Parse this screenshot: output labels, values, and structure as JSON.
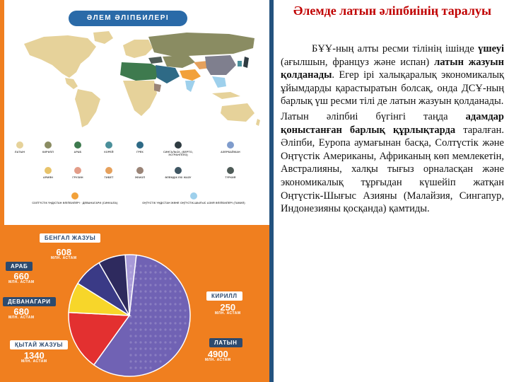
{
  "infographic": {
    "header": "ӘЛЕМ ӘЛІПБИЛЕРІ",
    "legend": [
      {
        "label": "ЛАТЫН",
        "color": "#e6d29a"
      },
      {
        "label": "КИРИЛЛ",
        "color": "#8a8c62"
      },
      {
        "label": "АРАБ",
        "color": "#3e7a4e"
      },
      {
        "label": "КОРЕЙ",
        "color": "#4a8f9a"
      },
      {
        "label": "ГРЕК",
        "color": "#2e6a86"
      },
      {
        "label": "СИНГАЛЬСК, (БЕРТО, ЭСТРАНГЕЛО)",
        "color": "#2f3c42"
      },
      {
        "label": "АЗЕРБАЙЖАН",
        "color": "#7f9ccc"
      },
      {
        "label": "АРМЯН",
        "color": "#e8c36a"
      },
      {
        "label": "ГРУЗИН",
        "color": "#e39d88"
      },
      {
        "label": "ТИБЕТ",
        "color": "#e6a15c"
      },
      {
        "label": "ЭФИОП",
        "color": "#9a8477"
      },
      {
        "label": "ӘЛЕМДІК ЕКІ ЖАЗУ",
        "color": "#3f5662"
      },
      {
        "label": "ТҮРКИЯ",
        "color": "#4e5b57"
      },
      {
        "label": "СОЛТҮСТІК ҮНДІСТАН ӘЛІПБИЛЕРІ · ДЕВАНАГАРИ (СИНХАЛА)",
        "color": "#f2a13a"
      },
      {
        "label": "ОҢТҮСТІК ҮНДІСТАН ЖӘНЕ ОҢТҮСТІК-ШЫҒЫС АЗИЯ ӘЛІПБИЛЕРІ (ТАМИЛ)",
        "color": "#9ed0ec"
      }
    ]
  },
  "chart_data": {
    "type": "pie",
    "title": "",
    "series": [
      {
        "name": "ЛАТЫН",
        "value": 4900,
        "value_label": "4900",
        "unit": "МЛН. АСТАМ",
        "color": "#7062b4"
      },
      {
        "name": "ҚЫТАЙ ЖАЗУЫ",
        "value": 1340,
        "value_label": "1340",
        "unit": "МЛН. АСТАМ",
        "color": "#e33030"
      },
      {
        "name": "ДЕВАНАГАРИ",
        "value": 680,
        "value_label": "680",
        "unit": "МЛН. АСТАМ",
        "color": "#f7d62a"
      },
      {
        "name": "АРАБ",
        "value": 660,
        "value_label": "660",
        "unit": "МЛН. АСТАМ",
        "color": "#3a3a86"
      },
      {
        "name": "БЕНГАЛ ЖАЗУЫ",
        "value": 608,
        "value_label": "608",
        "unit": "МЛН. АСТАМ",
        "color": "#2e2a5e"
      },
      {
        "name": "КИРИЛЛ",
        "value": 250,
        "value_label": "250",
        "unit": "МЛН. АСТАМ",
        "color": "#a89ad8"
      }
    ]
  },
  "text": {
    "title": "Әлемде латын әліпбиінің таралуы",
    "p1_a": "БҰҰ-ның алты ресми тілінің ішінде ",
    "p1_b": "үшеуі",
    "p1_c": " (ағылшын, француз және испан) ",
    "p1_d": "латын жазуын қолданады",
    "p1_e": ". Егер ірі халықаралық экономикалық ұйымдарды қарастыратын болсақ, онда ДСҰ-ның барлық үш ресми тілі де латын жазуын қолданады.",
    "p2_a": "Латын әліпбиі бүгінгі таңда ",
    "p2_b": "адамдар қоныстанған барлық құрлықтарда",
    "p2_c": " таралған. Әліпби, Еуропа аумағынан басқа, Солтүстік және Оңтүстік Американы, Африканың көп мемлекетін, Австралияны, халқы тығыз орналасқан және экономикалық тұрғыдан күшейіп жатқан Оңтүстік-Шығыс Азияны (Малайзия, Сингапур, Индонезияны қосқанда) қамтиды."
  }
}
